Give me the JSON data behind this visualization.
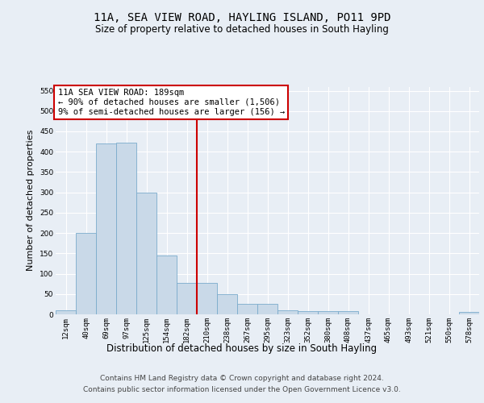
{
  "title": "11A, SEA VIEW ROAD, HAYLING ISLAND, PO11 9PD",
  "subtitle": "Size of property relative to detached houses in South Hayling",
  "xlabel": "Distribution of detached houses by size in South Hayling",
  "ylabel": "Number of detached properties",
  "bar_labels": [
    "12sqm",
    "40sqm",
    "69sqm",
    "97sqm",
    "125sqm",
    "154sqm",
    "182sqm",
    "210sqm",
    "238sqm",
    "267sqm",
    "295sqm",
    "323sqm",
    "352sqm",
    "380sqm",
    "408sqm",
    "437sqm",
    "465sqm",
    "493sqm",
    "521sqm",
    "550sqm",
    "578sqm"
  ],
  "bar_values": [
    10,
    200,
    420,
    422,
    300,
    145,
    78,
    78,
    50,
    25,
    25,
    10,
    8,
    8,
    8,
    0,
    0,
    0,
    0,
    0,
    5
  ],
  "bar_color": "#c9d9e8",
  "bar_edgecolor": "#7aabcc",
  "ylim": [
    0,
    560
  ],
  "yticks": [
    0,
    50,
    100,
    150,
    200,
    250,
    300,
    350,
    400,
    450,
    500,
    550
  ],
  "vline_x": 6.5,
  "vline_color": "#cc0000",
  "annotation_text": "11A SEA VIEW ROAD: 189sqm\n← 90% of detached houses are smaller (1,506)\n9% of semi-detached houses are larger (156) →",
  "annotation_box_color": "#ffffff",
  "annotation_box_edgecolor": "#cc0000",
  "footer_line1": "Contains HM Land Registry data © Crown copyright and database right 2024.",
  "footer_line2": "Contains public sector information licensed under the Open Government Licence v3.0.",
  "background_color": "#e8eef5",
  "plot_background": "#e8eef5",
  "title_fontsize": 10,
  "subtitle_fontsize": 8.5,
  "xlabel_fontsize": 8.5,
  "ylabel_fontsize": 8,
  "tick_fontsize": 6.5,
  "annotation_fontsize": 7.5,
  "footer_fontsize": 6.5
}
